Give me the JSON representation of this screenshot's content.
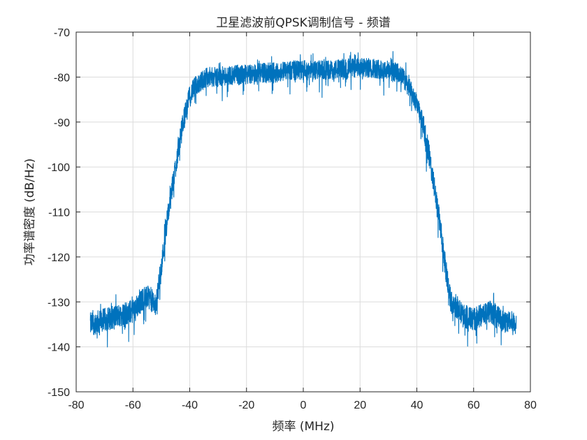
{
  "chart_data": {
    "type": "line",
    "title": "卫星滤波前QPSK调制信号 - 频谱",
    "xlabel": "频率 (MHz)",
    "ylabel": "功率谱密度 (dB/Hz)",
    "xlim": [
      -80,
      80
    ],
    "ylim": [
      -150,
      -70
    ],
    "xticks": [
      -80,
      -60,
      -40,
      -20,
      0,
      20,
      40,
      60,
      80
    ],
    "yticks": [
      -150,
      -140,
      -130,
      -120,
      -110,
      -100,
      -90,
      -80,
      -70
    ],
    "grid": true,
    "legend": "none",
    "line_color": "#0072BD",
    "series": [
      {
        "x": [
          -75,
          -70,
          -65,
          -60,
          -56,
          -54,
          -52,
          -50,
          -48,
          -46,
          -44,
          -42,
          -40,
          -38,
          -36,
          -34,
          -30,
          -25,
          -20,
          -15,
          -10,
          -5,
          0,
          5,
          10,
          15,
          20,
          25,
          30,
          33,
          35,
          37,
          40,
          42,
          44,
          46,
          48,
          50,
          52,
          54,
          56,
          60,
          65,
          70,
          75
        ],
        "y": [
          -135,
          -134,
          -133,
          -132,
          -129,
          -129,
          -131,
          -122,
          -112,
          -104,
          -96,
          -89,
          -84,
          -82,
          -81,
          -80,
          -80,
          -79.5,
          -79.5,
          -79,
          -79,
          -78.5,
          -78.5,
          -78.5,
          -78.5,
          -78,
          -78,
          -78,
          -78.5,
          -79,
          -80,
          -82,
          -86,
          -90,
          -96,
          -104,
          -112,
          -122,
          -130,
          -131,
          -133,
          -134,
          -132,
          -134,
          -135
        ]
      }
    ]
  }
}
